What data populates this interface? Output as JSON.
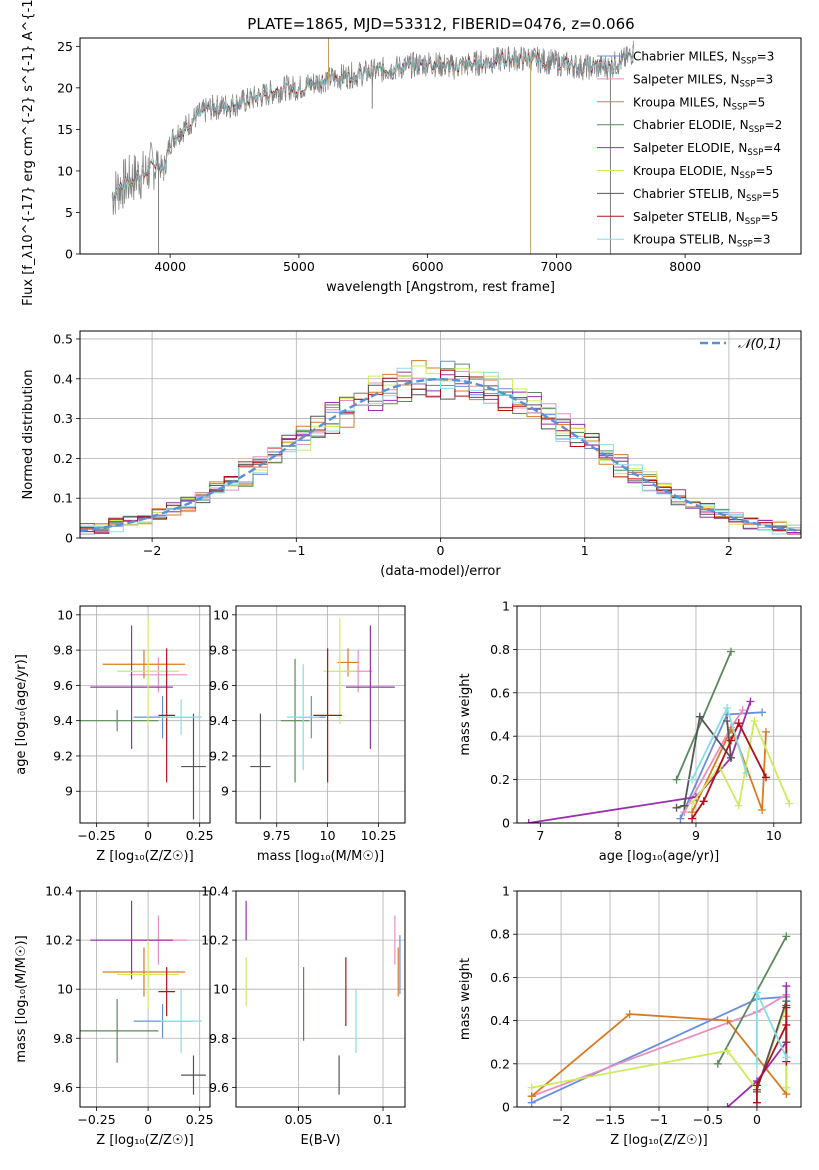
{
  "title": "PLATE=1865, MJD=53312, FIBERID=0476, z=0.066",
  "colors": {
    "chab_miles": "#6a8fd9",
    "salp_miles": "#e88fbf",
    "krou_miles": "#d97a22",
    "chab_elodie": "#5a8a5a",
    "salp_elodie": "#9a2fae",
    "krou_elodie": "#cdec5a",
    "chab_stelib": "#555555",
    "salp_stelib": "#b0101a",
    "krou_stelib": "#88dde3",
    "data": "#7f7f7f",
    "normal": "#5b8fd6"
  },
  "series_names": [
    "Chabrier MILES, N_{SSP}=3",
    "Salpeter MILES, N_{SSP}=3",
    "Kroupa MILES, N_{SSP}=5",
    "Chabrier ELODIE, N_{SSP}=2",
    "Salpeter ELODIE, N_{SSP}=4",
    "Kroupa ELODIE, N_{SSP}=5",
    "Chabrier STELIB, N_{SSP}=5",
    "Salpeter STELIB, N_{SSP}=5",
    "Kroupa STELIB, N_{SSP}=3"
  ],
  "chart_data": [
    {
      "type": "line",
      "title": "PLATE=1865, MJD=53312, FIBERID=0476, z=0.066",
      "xlabel": "wavelength [Angstrom, rest frame]",
      "ylabel": "Flux [f_λ10^{-17} erg cm^{-2} s^{-1} A^{-1}]",
      "xlim": [
        3300,
        8900
      ],
      "ylim": [
        0,
        26
      ],
      "xticks": [
        4000,
        5000,
        6000,
        7000,
        8000
      ],
      "yticks": [
        0,
        5,
        10,
        15,
        20,
        25
      ],
      "grid": false,
      "legend": "right",
      "spectrum_anchors": {
        "x": [
          3550,
          3600,
          3700,
          3750,
          3800,
          3850,
          3900,
          3950,
          4000,
          4050,
          4100,
          4200,
          4300,
          4500,
          4700,
          4800,
          4900,
          5000,
          5200,
          5400,
          5600,
          5800,
          6000,
          6200,
          6400,
          6600,
          6800,
          7000,
          7200,
          7400,
          7550,
          7600
        ],
        "y": [
          7,
          8,
          9,
          9.5,
          9.5,
          10.5,
          11,
          10,
          13.5,
          14.5,
          15,
          16.5,
          17.5,
          18,
          19,
          19.5,
          20,
          20,
          21,
          21.5,
          22,
          22.5,
          23,
          22.5,
          23,
          23.5,
          23.5,
          23,
          22.5,
          22.5,
          23.5,
          24.5
        ]
      },
      "spikes": [
        {
          "x": 3910,
          "y": 0
        },
        {
          "x": 5230,
          "y": 26
        },
        {
          "x": 5570,
          "y": 17.5
        },
        {
          "x": 6800,
          "y": 0
        },
        {
          "x": 7420,
          "y": 0
        }
      ]
    },
    {
      "type": "area",
      "xlabel": "(data-model)/error",
      "ylabel": "Normed distribution",
      "xlim": [
        -2.5,
        2.5
      ],
      "ylim": [
        0,
        0.52
      ],
      "xticks": [
        -2,
        -1,
        0,
        1,
        2
      ],
      "yticks": [
        0.0,
        0.1,
        0.2,
        0.3,
        0.4,
        0.5
      ],
      "grid": true,
      "legend": "top-right",
      "legend_label": "𝒩(0,1)",
      "bin_width": 0.1
    },
    {
      "type": "scatter",
      "xlabel": "Z [log₁₀(Z/Z☉)]",
      "ylabel": "age  [log₁₀(age/yr)]",
      "xlim": [
        -0.33,
        0.3
      ],
      "ylim": [
        8.82,
        10.05
      ],
      "xticks": [
        -0.25,
        0.0,
        0.25
      ],
      "yticks": [
        9.0,
        9.2,
        9.4,
        9.6,
        9.8,
        10.0
      ],
      "grid": true,
      "points": [
        {
          "x": 0.07,
          "y": 9.42,
          "xerr": 0.14,
          "yerr": 0.12
        },
        {
          "x": 0.05,
          "y": 9.66,
          "xerr": 0.14,
          "yerr": 0.1
        },
        {
          "x": -0.02,
          "y": 9.72,
          "xerr": 0.2,
          "yerr": 0.08
        },
        {
          "x": -0.15,
          "y": 9.4,
          "xerr": 0.2,
          "yerr": 0.06
        },
        {
          "x": -0.08,
          "y": 9.59,
          "xerr": 0.2,
          "yerr": 0.35
        },
        {
          "x": 0.0,
          "y": 9.68,
          "xerr": 0.15,
          "yerr": 0.3
        },
        {
          "x": 0.22,
          "y": 9.14,
          "xerr": 0.06,
          "yerr": 0.3
        },
        {
          "x": 0.09,
          "y": 9.43,
          "xerr": 0.04,
          "yerr": 0.38
        },
        {
          "x": 0.16,
          "y": 9.42,
          "xerr": 0.1,
          "yerr": 0.1
        }
      ]
    },
    {
      "type": "scatter",
      "xlabel": "mass [log₁₀(M/M☉)]",
      "ylabel": "",
      "xlim": [
        9.55,
        10.38
      ],
      "ylim": [
        8.82,
        10.05
      ],
      "xticks": [
        9.75,
        10.0,
        10.25
      ],
      "yticks": [
        9.0,
        9.2,
        9.4,
        9.6,
        9.8,
        10.0
      ],
      "grid": true,
      "points": [
        {
          "x": 9.92,
          "y": 9.42,
          "xerr": 0.07,
          "yerr": 0.12
        },
        {
          "x": 10.15,
          "y": 9.68,
          "xerr": 0.07,
          "yerr": 0.12
        },
        {
          "x": 10.1,
          "y": 9.73,
          "xerr": 0.05,
          "yerr": 0.08
        },
        {
          "x": 9.84,
          "y": 9.4,
          "xerr": 0.07,
          "yerr": 0.35
        },
        {
          "x": 10.21,
          "y": 9.59,
          "xerr": 0.12,
          "yerr": 0.35
        },
        {
          "x": 10.06,
          "y": 9.68,
          "xerr": 0.08,
          "yerr": 0.3
        },
        {
          "x": 9.67,
          "y": 9.14,
          "xerr": 0.05,
          "yerr": 0.3
        },
        {
          "x": 10.0,
          "y": 9.43,
          "xerr": 0.07,
          "yerr": 0.38
        },
        {
          "x": 9.88,
          "y": 9.42,
          "xerr": 0.08,
          "yerr": 0.3
        }
      ]
    },
    {
      "type": "line",
      "xlabel": "age  [log₁₀(age/yr)]",
      "ylabel": "mass weight",
      "xlim": [
        6.7,
        10.35
      ],
      "ylim": [
        0,
        1
      ],
      "xticks": [
        7,
        8,
        9,
        10
      ],
      "yticks": [
        0.0,
        0.2,
        0.4,
        0.6,
        0.8,
        1.0
      ],
      "grid": true
    },
    {
      "type": "scatter",
      "xlabel": "Z [log₁₀(Z/Z☉)]",
      "ylabel": "mass [log₁₀(M/M☉)]",
      "xlim": [
        -0.33,
        0.3
      ],
      "ylim": [
        9.52,
        10.4
      ],
      "xticks": [
        -0.25,
        0.0,
        0.25
      ],
      "yticks": [
        9.6,
        9.8,
        10.0,
        10.2,
        10.4
      ],
      "grid": true,
      "points": [
        {
          "x": 0.07,
          "y": 9.87,
          "xerr": 0.14,
          "yerr": 0.07
        },
        {
          "x": 0.05,
          "y": 10.2,
          "xerr": 0.14,
          "yerr": 0.1
        },
        {
          "x": -0.02,
          "y": 10.07,
          "xerr": 0.2,
          "yerr": 0.1
        },
        {
          "x": -0.15,
          "y": 9.83,
          "xerr": 0.2,
          "yerr": 0.13
        },
        {
          "x": -0.08,
          "y": 10.2,
          "xerr": 0.2,
          "yerr": 0.16
        },
        {
          "x": 0.0,
          "y": 10.06,
          "xerr": 0.15,
          "yerr": 0.14
        },
        {
          "x": 0.22,
          "y": 9.65,
          "xerr": 0.06,
          "yerr": 0.08
        },
        {
          "x": 0.09,
          "y": 9.99,
          "xerr": 0.04,
          "yerr": 0.1
        },
        {
          "x": 0.16,
          "y": 9.87,
          "xerr": 0.1,
          "yerr": 0.13
        }
      ]
    },
    {
      "type": "scatter",
      "xlabel": "E(B-V)",
      "ylabel": "",
      "xlim": [
        0.013,
        0.113
      ],
      "ylim": [
        9.52,
        10.4
      ],
      "xticks": [
        0.05,
        0.1
      ],
      "yticks": [
        9.6,
        9.8,
        10.0,
        10.2,
        10.4
      ],
      "grid": true,
      "points": [
        {
          "x": 0.11,
          "y": 10.1,
          "yerr": 0.12
        },
        {
          "x": 0.107,
          "y": 10.2,
          "yerr": 0.1
        },
        {
          "x": 0.109,
          "y": 10.07,
          "yerr": 0.1
        },
        {
          "x": 0.053,
          "y": 9.94,
          "yerr": 0.15
        },
        {
          "x": 0.019,
          "y": 10.28,
          "yerr": 0.08
        },
        {
          "x": 0.019,
          "y": 10.03,
          "yerr": 0.1
        },
        {
          "x": 0.074,
          "y": 9.65,
          "yerr": 0.08
        },
        {
          "x": 0.078,
          "y": 9.99,
          "yerr": 0.14
        },
        {
          "x": 0.084,
          "y": 9.87,
          "yerr": 0.13
        }
      ]
    },
    {
      "type": "line",
      "xlabel": "Z [log₁₀(Z/Z☉)]",
      "ylabel": "mass weight",
      "xlim": [
        -2.45,
        0.45
      ],
      "ylim": [
        0,
        1
      ],
      "xticks": [
        -2.0,
        -1.5,
        -1.0,
        -0.5,
        0.0
      ],
      "yticks": [
        0.0,
        0.2,
        0.4,
        0.6,
        0.8,
        1.0
      ],
      "grid": true
    }
  ],
  "ssp_weights": [
    {
      "age": [
        8.8,
        9.4,
        9.85
      ],
      "Z": [
        -2.3,
        0.0,
        0.3
      ],
      "w": [
        0.02,
        0.5,
        0.51
      ]
    },
    {
      "age": [
        8.85,
        9.45,
        9.6
      ],
      "Z": [
        -2.3,
        0.0,
        0.3
      ],
      "w": [
        0.05,
        0.44,
        0.52
      ]
    },
    {
      "age": [
        8.95,
        9.45,
        9.5,
        9.85,
        9.9
      ],
      "Z": [
        -2.3,
        -1.3,
        -0.3,
        0.3,
        0.3
      ],
      "w": [
        0.05,
        0.43,
        0.4,
        0.06,
        0.42
      ]
    },
    {
      "age": [
        8.75,
        9.45
      ],
      "Z": [
        -0.4,
        0.3
      ],
      "w": [
        0.2,
        0.79
      ]
    },
    {
      "age": [
        6.85,
        9.0,
        9.45,
        9.7
      ],
      "Z": [
        -0.3,
        0.0,
        0.3,
        0.3
      ],
      "w": [
        0.0,
        0.12,
        0.3,
        0.56
      ]
    },
    {
      "age": [
        8.95,
        9.3,
        9.55,
        9.75,
        10.2
      ],
      "Z": [
        -2.3,
        -0.3,
        0.0,
        0.3,
        0.3
      ],
      "w": [
        0.09,
        0.26,
        0.08,
        0.47,
        0.09
      ]
    },
    {
      "age": [
        8.75,
        8.85,
        9.05,
        9.45,
        9.4
      ],
      "Z": [
        0.0,
        0.0,
        0.3,
        0.3,
        0.3
      ],
      "w": [
        0.07,
        0.08,
        0.49,
        0.3,
        0.47
      ]
    },
    {
      "age": [
        8.95,
        9.1,
        9.45,
        9.55,
        9.9
      ],
      "Z": [
        0.0,
        0.0,
        0.3,
        0.3,
        0.3
      ],
      "w": [
        0.02,
        0.1,
        0.38,
        0.46,
        0.21
      ]
    },
    {
      "age": [
        8.95,
        9.4,
        9.65
      ],
      "Z": [
        0.0,
        0.0,
        0.3
      ],
      "w": [
        0.2,
        0.53,
        0.23
      ]
    }
  ]
}
